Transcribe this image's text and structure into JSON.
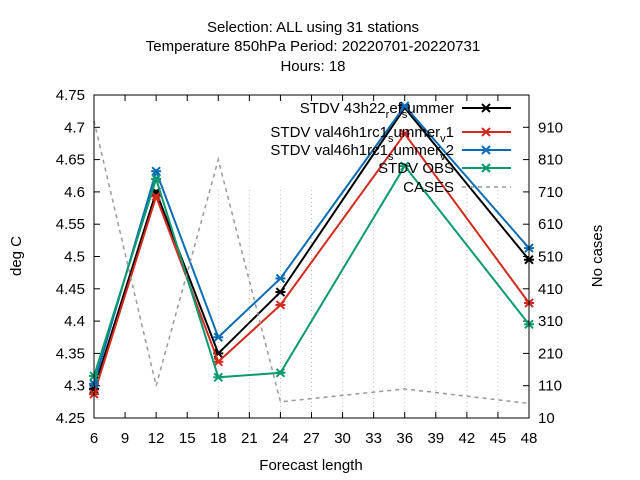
{
  "chart_data": {
    "type": "line",
    "title_lines": [
      "Selection: ALL using    31 stations",
      "Temperature 850hPa   Period: 20220701-20220731",
      "Hours:  18"
    ],
    "xlabel": "Forecast length",
    "ylabel": "deg C",
    "y2label": "No cases",
    "xlim": [
      6,
      48
    ],
    "ylim": [
      4.25,
      4.75
    ],
    "y2lim": [
      10,
      1010
    ],
    "xticks": [
      6,
      9,
      12,
      15,
      18,
      21,
      24,
      27,
      30,
      33,
      36,
      39,
      42,
      45,
      48
    ],
    "yticks": [
      "4.25",
      "4.3",
      "4.35",
      "4.4",
      "4.45",
      "4.5",
      "4.55",
      "4.6",
      "4.65",
      "4.7",
      "4.75"
    ],
    "y2ticks": [
      10,
      110,
      210,
      310,
      410,
      510,
      610,
      710,
      810,
      910
    ],
    "grid": "vertical at x>=18, lower part",
    "legend_position": "top-right",
    "x": [
      6,
      12,
      18,
      24,
      36,
      48
    ],
    "series": [
      {
        "name": "STDV 43h22_ref_summer",
        "legend_parts": [
          "STDV 43h22",
          "r",
          "ef",
          "s",
          "ummer"
        ],
        "color": "#000000",
        "values": [
          4.295,
          4.6,
          4.35,
          4.445,
          4.73,
          4.495
        ]
      },
      {
        "name": "STDV val46h1rc1_summer_v1",
        "legend_parts": [
          "STDV val46h1rc1",
          "s",
          "ummer",
          "v",
          "1"
        ],
        "color": "#d42a1e",
        "values": [
          4.287,
          4.593,
          4.337,
          4.425,
          4.69,
          4.428
        ]
      },
      {
        "name": "STDV val46h1rc1_summer_v2",
        "legend_parts": [
          "STDV val46h1rc1",
          "s",
          "ummer",
          "v",
          "2"
        ],
        "color": "#0a6cb5",
        "values": [
          4.303,
          4.632,
          4.375,
          4.466,
          4.733,
          4.513
        ]
      },
      {
        "name": "STDV OBS",
        "color": "#0a9a6f",
        "values": [
          4.315,
          4.62,
          4.313,
          4.32,
          4.64,
          4.395
        ]
      },
      {
        "name": "CASES",
        "color": "#999999",
        "axis": "y2",
        "dashed": true,
        "x": [
          6,
          12,
          18,
          24,
          36,
          48
        ],
        "values": [
          930,
          110,
          810,
          60,
          100,
          55
        ]
      }
    ]
  }
}
